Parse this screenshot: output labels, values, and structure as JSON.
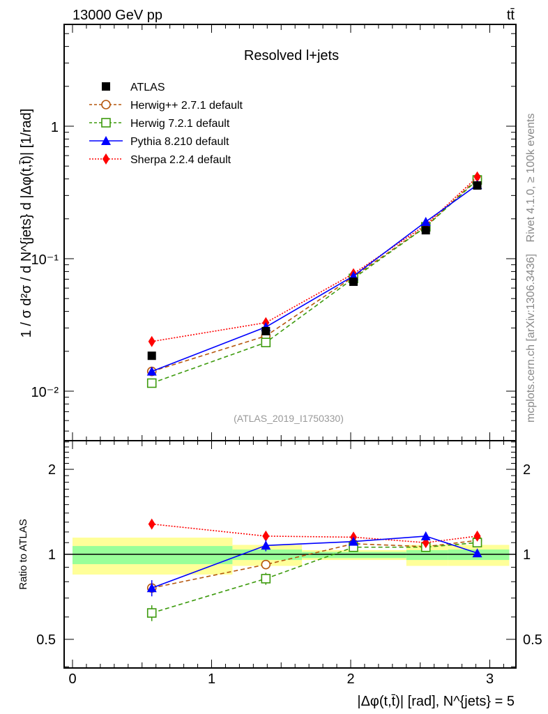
{
  "header": {
    "energy_label": "13000 GeV pp",
    "process_label": "tt̄"
  },
  "side_labels": {
    "rivet": "Rivet 4.1.0, ≥ 100k events",
    "mcplots": "mcplots.cern.ch [arXiv:1306.3436]"
  },
  "colors": {
    "ATLAS": "#000000",
    "Herwig++": "#b5560c",
    "Herwig7": "#3c9a0c",
    "Pythia": "#0000ff",
    "Sherpa": "#ff0000",
    "band_outer": "#ffff99",
    "band_inner": "#99ff99"
  },
  "chart_data": [
    {
      "type": "line",
      "title": "Resolved l+jets",
      "annotation": "(ATLAS_2019_I1750330)",
      "ylabel": "1 / σ d²σ / d N^{jets} d |Δφ(t,t̄)| [1/rad]",
      "yscale": "log",
      "ylim": [
        0.0042,
        5.9
      ],
      "xlim": [
        -0.1,
        3.2
      ],
      "y_tick_labels": [
        "10⁻²",
        "10⁻¹",
        "1"
      ],
      "y_ticks": [
        0.01,
        0.1,
        1
      ],
      "legend_position": "top-left",
      "x": [
        0.57,
        1.39,
        2.02,
        2.54,
        2.91
      ],
      "series": [
        {
          "name": "ATLAS",
          "legend": "ATLAS",
          "marker": "filled-square",
          "values": [
            0.0185,
            0.0284,
            0.067,
            0.164,
            0.357
          ]
        },
        {
          "name": "Herwig++",
          "legend": "Herwig++ 2.7.1 default",
          "marker": "open-circle",
          "line": "dashed",
          "values": [
            0.0141,
            0.0261,
            0.073,
            0.175,
            0.4
          ]
        },
        {
          "name": "Herwig7",
          "legend": "Herwig 7.2.1 default",
          "marker": "open-square",
          "line": "dashed",
          "values": [
            0.0115,
            0.0233,
            0.071,
            0.174,
            0.393
          ]
        },
        {
          "name": "Pythia",
          "legend": "Pythia 8.210 default",
          "marker": "filled-triangle",
          "line": "solid",
          "values": [
            0.0141,
            0.0305,
            0.074,
            0.19,
            0.361
          ]
        },
        {
          "name": "Sherpa",
          "legend": "Sherpa 2.2.4 default",
          "marker": "filled-diamond",
          "line": "dotted",
          "values": [
            0.0237,
            0.0329,
            0.077,
            0.18,
            0.414
          ]
        }
      ]
    },
    {
      "type": "line",
      "ylabel": "Ratio to ATLAS",
      "xlabel": "|Δφ(t,t̄)| [rad], N^{jets} = 5",
      "yscale": "log",
      "ylim": [
        0.395,
        2.53
      ],
      "xlim": [
        -0.1,
        3.2
      ],
      "x_ticks": [
        0,
        1,
        2,
        3
      ],
      "x_tick_labels": [
        "0",
        "1",
        "2",
        "3"
      ],
      "y_ticks": [
        0.5,
        1,
        2
      ],
      "y_tick_labels": [
        "0.5",
        "1",
        "2"
      ],
      "x": [
        0.57,
        1.39,
        2.02,
        2.54,
        2.91
      ],
      "bin_edges": [
        0,
        1.15,
        1.65,
        2.4,
        2.7,
        3.14
      ],
      "band_outer": [
        [
          0.848,
          1.146
        ],
        [
          0.91,
          1.08
        ],
        [
          0.955,
          1.035
        ],
        [
          0.91,
          1.08
        ],
        [
          0.91,
          1.08
        ]
      ],
      "band_inner": [
        [
          0.923,
          1.07
        ],
        [
          0.955,
          1.04
        ],
        [
          0.97,
          1.02
        ],
        [
          0.955,
          1.035
        ],
        [
          0.955,
          1.04
        ]
      ],
      "series": [
        {
          "name": "Herwig++",
          "values": [
            0.76,
            0.92,
            1.09,
            1.065,
            1.12
          ],
          "errors": [
            0.03,
            0.03,
            0.02,
            0.02,
            0.02
          ]
        },
        {
          "name": "Herwig7",
          "values": [
            0.62,
            0.82,
            1.06,
            1.06,
            1.1
          ],
          "errors": [
            0.04,
            0.04,
            0.02,
            0.02,
            0.02
          ]
        },
        {
          "name": "Pythia",
          "values": [
            0.76,
            1.075,
            1.11,
            1.16,
            1.01
          ],
          "errors": [
            0.05,
            0.05,
            0.02,
            0.03,
            0.02
          ]
        },
        {
          "name": "Sherpa",
          "values": [
            1.28,
            1.16,
            1.15,
            1.1,
            1.16
          ],
          "errors": [
            0.03,
            0.03,
            0.02,
            0.02,
            0.02
          ]
        }
      ]
    }
  ]
}
